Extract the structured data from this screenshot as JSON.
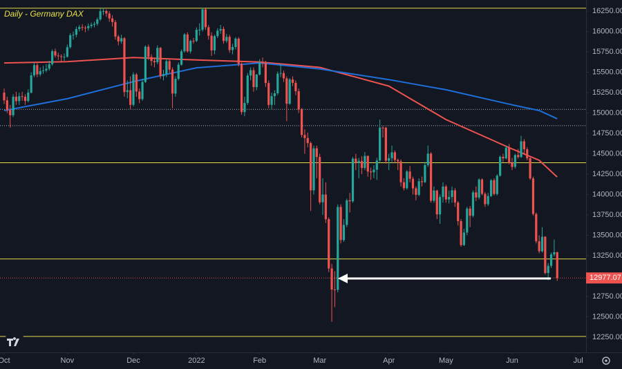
{
  "chart_data": {
    "type": "candlestick",
    "title": "Daily - Germany DAX",
    "up_color": "#26a69a",
    "down_color": "#ef5350",
    "xlim": [
      -1.38,
      193.6
    ],
    "ylim": [
      12064,
      16386
    ],
    "xticks": [
      {
        "value": 0,
        "label": "Oct"
      },
      {
        "value": 21,
        "label": "Nov"
      },
      {
        "value": 43,
        "label": "Dec"
      },
      {
        "value": 64,
        "label": "2022"
      },
      {
        "value": 85,
        "label": "Feb"
      },
      {
        "value": 105,
        "label": "Mar"
      },
      {
        "value": 128,
        "label": "Apr"
      },
      {
        "value": 147,
        "label": "May"
      },
      {
        "value": 169,
        "label": "Jun"
      },
      {
        "value": 191,
        "label": "Jul"
      }
    ],
    "yticks": [
      {
        "value": 12250,
        "label": "12250.00"
      },
      {
        "value": 12500,
        "label": "12500.00"
      },
      {
        "value": 12750,
        "label": "12750.00"
      },
      {
        "value": 13000,
        "label": "13000.00"
      },
      {
        "value": 13250,
        "label": "13250.00"
      },
      {
        "value": 13500,
        "label": "13500.00"
      },
      {
        "value": 13750,
        "label": "13750.00"
      },
      {
        "value": 14000,
        "label": "14000.00"
      },
      {
        "value": 14250,
        "label": "14250.00"
      },
      {
        "value": 14500,
        "label": "14500.00"
      },
      {
        "value": 14750,
        "label": "14750.00"
      },
      {
        "value": 15000,
        "label": "15000.00"
      },
      {
        "value": 15250,
        "label": "15250.00"
      },
      {
        "value": 15500,
        "label": "15500.00"
      },
      {
        "value": 15750,
        "label": "15750.00"
      },
      {
        "value": 16000,
        "label": "16000.00"
      },
      {
        "value": 16250,
        "label": "16250.00"
      }
    ],
    "levels": {
      "color": "#e5dd4c",
      "values": [
        16285,
        14390,
        13210,
        12260
      ]
    },
    "dotted_levels": {
      "color": "#b2b5be",
      "values": [
        15045,
        14845
      ]
    },
    "series": [
      {
        "color": "#ef5350",
        "x": [
          0,
          21,
          43,
          64,
          85,
          105,
          128,
          147,
          169,
          178,
          184
        ],
        "values": [
          15614,
          15630,
          15680,
          15650,
          15625,
          15560,
          15330,
          14920,
          14560,
          14420,
          14215
        ]
      },
      {
        "color": "#1e6fd9",
        "x": [
          0,
          21,
          43,
          64,
          85,
          105,
          128,
          147,
          169,
          178,
          184
        ],
        "values": [
          15030,
          15175,
          15385,
          15555,
          15614,
          15540,
          15410,
          15285,
          15100,
          15030,
          14930
        ]
      }
    ],
    "ohlc": [
      [
        15250,
        15300,
        15110,
        15156
      ],
      [
        15156,
        15200,
        15000,
        15037
      ],
      [
        15037,
        15100,
        14820,
        14973
      ],
      [
        14973,
        15230,
        14950,
        15200
      ],
      [
        15200,
        15260,
        15100,
        15146
      ],
      [
        15146,
        15250,
        15100,
        15206
      ],
      [
        15206,
        15260,
        15150,
        15199
      ],
      [
        15199,
        15230,
        15100,
        15147
      ],
      [
        15147,
        15290,
        15130,
        15250
      ],
      [
        15250,
        15500,
        15240,
        15462
      ],
      [
        15462,
        15620,
        15440,
        15587
      ],
      [
        15587,
        15610,
        15440,
        15474
      ],
      [
        15474,
        15560,
        15450,
        15515
      ],
      [
        15515,
        15580,
        15480,
        15522
      ],
      [
        15522,
        15600,
        15500,
        15543
      ],
      [
        15543,
        15640,
        15520,
        15599
      ],
      [
        15599,
        15780,
        15580,
        15758
      ],
      [
        15758,
        15790,
        15680,
        15705
      ],
      [
        15705,
        15740,
        15650,
        15696
      ],
      [
        15696,
        15720,
        15620,
        15688
      ],
      [
        15688,
        15730,
        15640,
        15690
      ],
      [
        15690,
        15840,
        15680,
        15807
      ],
      [
        15807,
        15980,
        15790,
        15954
      ],
      [
        15954,
        16000,
        15900,
        15960
      ],
      [
        15960,
        16060,
        15930,
        16030
      ],
      [
        16030,
        16080,
        16000,
        16054
      ],
      [
        16054,
        16090,
        16010,
        16047
      ],
      [
        16047,
        16070,
        15990,
        16040
      ],
      [
        16040,
        16100,
        16010,
        16067
      ],
      [
        16067,
        16110,
        16040,
        16083
      ],
      [
        16083,
        16120,
        16050,
        16094
      ],
      [
        16094,
        16170,
        16070,
        16148
      ],
      [
        16148,
        16280,
        16130,
        16248
      ],
      [
        16248,
        16290,
        16200,
        16251
      ],
      [
        16251,
        16270,
        16180,
        16221
      ],
      [
        16221,
        16250,
        16120,
        16160
      ],
      [
        16160,
        16200,
        16060,
        16116
      ],
      [
        16116,
        16140,
        15900,
        15938
      ],
      [
        15938,
        15960,
        15830,
        15878
      ],
      [
        15878,
        15960,
        15850,
        15917
      ],
      [
        15917,
        15930,
        15200,
        15257
      ],
      [
        15257,
        15400,
        15180,
        15280
      ],
      [
        15280,
        15450,
        15050,
        15100
      ],
      [
        15100,
        15500,
        15080,
        15473
      ],
      [
        15473,
        15490,
        15200,
        15263
      ],
      [
        15263,
        15300,
        15120,
        15170
      ],
      [
        15170,
        15420,
        15150,
        15380
      ],
      [
        15380,
        15830,
        15370,
        15813
      ],
      [
        15813,
        15840,
        15650,
        15687
      ],
      [
        15687,
        15720,
        15580,
        15639
      ],
      [
        15639,
        15680,
        15560,
        15623
      ],
      [
        15623,
        15830,
        15600,
        15799
      ],
      [
        15799,
        15810,
        15420,
        15453
      ],
      [
        15453,
        15530,
        15400,
        15476
      ],
      [
        15476,
        15660,
        15440,
        15636
      ],
      [
        15636,
        15660,
        15490,
        15532
      ],
      [
        15532,
        15560,
        15060,
        15239
      ],
      [
        15239,
        15450,
        15200,
        15419
      ],
      [
        15419,
        15620,
        15400,
        15593
      ],
      [
        15593,
        15780,
        15580,
        15757
      ],
      [
        15757,
        15980,
        15740,
        15964
      ],
      [
        15964,
        15990,
        15740,
        15756
      ],
      [
        15756,
        15900,
        15730,
        15885
      ],
      [
        15885,
        15920,
        15850,
        15884
      ],
      [
        15884,
        16050,
        15870,
        16021
      ],
      [
        16021,
        16100,
        15950,
        16021
      ],
      [
        16021,
        16290,
        16000,
        16271
      ],
      [
        16271,
        16280,
        16020,
        16052
      ],
      [
        16052,
        16080,
        15900,
        15948
      ],
      [
        15948,
        15990,
        15700,
        15768
      ],
      [
        15768,
        15960,
        15720,
        15943
      ],
      [
        15943,
        16040,
        15920,
        16011
      ],
      [
        16011,
        16080,
        15970,
        16031
      ],
      [
        16031,
        16060,
        15850,
        15883
      ],
      [
        15883,
        15970,
        15860,
        15934
      ],
      [
        15934,
        15960,
        15740,
        15772
      ],
      [
        15772,
        15850,
        15720,
        15810
      ],
      [
        15810,
        15930,
        15780,
        15912
      ],
      [
        15912,
        15930,
        15570,
        15603
      ],
      [
        15603,
        15620,
        14980,
        15011
      ],
      [
        15011,
        15200,
        14960,
        15124
      ],
      [
        15124,
        15490,
        15100,
        15460
      ],
      [
        15460,
        15560,
        15400,
        15525
      ],
      [
        15525,
        15560,
        15260,
        15318
      ],
      [
        15318,
        15480,
        15280,
        15471
      ],
      [
        15471,
        15660,
        15460,
        15619
      ],
      [
        15619,
        15680,
        15560,
        15613
      ],
      [
        15613,
        15640,
        15320,
        15368
      ],
      [
        15368,
        15400,
        15060,
        15100
      ],
      [
        15100,
        15250,
        15050,
        15207
      ],
      [
        15207,
        15280,
        15100,
        15242
      ],
      [
        15242,
        15510,
        15220,
        15482
      ],
      [
        15482,
        15600,
        15440,
        15490
      ],
      [
        15490,
        15520,
        15380,
        15425
      ],
      [
        15425,
        15450,
        14900,
        15114
      ],
      [
        15114,
        15430,
        15100,
        15412
      ],
      [
        15412,
        15450,
        15330,
        15370
      ],
      [
        15370,
        15400,
        15220,
        15268
      ],
      [
        15268,
        15300,
        15000,
        15043
      ],
      [
        15043,
        15060,
        14700,
        14731
      ],
      [
        14731,
        14800,
        14500,
        14693
      ],
      [
        14693,
        14760,
        14580,
        14631
      ],
      [
        14631,
        14650,
        13800,
        14052
      ],
      [
        14052,
        14600,
        14000,
        14567
      ],
      [
        14567,
        14600,
        14200,
        14461
      ],
      [
        14461,
        14500,
        13880,
        13905
      ],
      [
        13905,
        14200,
        13750,
        14000
      ],
      [
        14000,
        14150,
        13650,
        13698
      ],
      [
        13698,
        13720,
        13050,
        13094
      ],
      [
        13094,
        13150,
        12440,
        12835
      ],
      [
        12835,
        13060,
        12620,
        12831
      ],
      [
        12831,
        13880,
        12800,
        13848
      ],
      [
        13848,
        13880,
        13400,
        13442
      ],
      [
        13442,
        13700,
        13420,
        13628
      ],
      [
        13628,
        13950,
        13600,
        13929
      ],
      [
        13929,
        14020,
        13780,
        13917
      ],
      [
        13917,
        14460,
        13900,
        14441
      ],
      [
        14441,
        14500,
        14300,
        14388
      ],
      [
        14388,
        14450,
        14200,
        14413
      ],
      [
        14413,
        14470,
        14250,
        14326
      ],
      [
        14326,
        14520,
        14300,
        14474
      ],
      [
        14474,
        14480,
        14220,
        14283
      ],
      [
        14283,
        14330,
        14180,
        14273
      ],
      [
        14273,
        14360,
        14200,
        14305
      ],
      [
        14305,
        14450,
        14180,
        14418
      ],
      [
        14418,
        14920,
        14400,
        14821
      ],
      [
        14821,
        14840,
        14700,
        14820
      ],
      [
        14820,
        14830,
        14380,
        14415
      ],
      [
        14415,
        14500,
        14300,
        14446
      ],
      [
        14446,
        14600,
        14400,
        14518
      ],
      [
        14518,
        14540,
        14390,
        14424
      ],
      [
        14424,
        14440,
        14300,
        14407
      ],
      [
        14407,
        14430,
        14100,
        14151
      ],
      [
        14151,
        14200,
        14050,
        14078
      ],
      [
        14078,
        14300,
        14060,
        14283
      ],
      [
        14283,
        14350,
        14150,
        14194
      ],
      [
        14194,
        14220,
        14000,
        14076
      ],
      [
        14076,
        14100,
        13930,
        13997
      ],
      [
        13997,
        14200,
        13980,
        14163
      ],
      [
        14163,
        14220,
        14100,
        14153
      ],
      [
        14153,
        14400,
        14140,
        14362
      ],
      [
        14362,
        14600,
        14340,
        14502
      ],
      [
        14502,
        14520,
        13900,
        13924
      ],
      [
        13924,
        14100,
        13900,
        14049
      ],
      [
        14049,
        14060,
        13700,
        13757
      ],
      [
        13757,
        14000,
        13640,
        13970
      ],
      [
        13970,
        14150,
        13900,
        14098
      ],
      [
        14098,
        14120,
        13900,
        13940
      ],
      [
        13940,
        14050,
        13890,
        13970
      ],
      [
        13970,
        14100,
        13900,
        14052
      ],
      [
        14052,
        14080,
        13850,
        13902
      ],
      [
        13902,
        13920,
        13620,
        13674
      ],
      [
        13674,
        13700,
        13360,
        13380
      ],
      [
        13380,
        13580,
        13370,
        13534
      ],
      [
        13534,
        13850,
        13500,
        13828
      ],
      [
        13828,
        13860,
        13600,
        13740
      ],
      [
        13740,
        14050,
        13720,
        14027
      ],
      [
        14027,
        14100,
        13920,
        13964
      ],
      [
        13964,
        14200,
        13940,
        14185
      ],
      [
        14185,
        14200,
        13990,
        14008
      ],
      [
        14008,
        14030,
        13850,
        13882
      ],
      [
        13882,
        14020,
        13860,
        13982
      ],
      [
        13982,
        14190,
        13970,
        14176
      ],
      [
        14176,
        14200,
        13990,
        14007
      ],
      [
        14007,
        14250,
        13990,
        14231
      ],
      [
        14231,
        14480,
        14220,
        14462
      ],
      [
        14462,
        14500,
        14400,
        14444
      ],
      [
        14444,
        14600,
        14430,
        14575
      ],
      [
        14575,
        14620,
        14370,
        14388
      ],
      [
        14388,
        14450,
        14300,
        14340
      ],
      [
        14340,
        14500,
        14320,
        14485
      ],
      [
        14485,
        14560,
        14440,
        14460
      ],
      [
        14460,
        14720,
        14450,
        14653
      ],
      [
        14653,
        14680,
        14500,
        14556
      ],
      [
        14556,
        14580,
        14420,
        14445
      ],
      [
        14445,
        14460,
        14180,
        14198
      ],
      [
        14198,
        14220,
        13740,
        13762
      ],
      [
        13762,
        13780,
        13400,
        13427
      ],
      [
        13427,
        13500,
        13280,
        13304
      ],
      [
        13304,
        13600,
        13290,
        13483
      ],
      [
        13483,
        13490,
        13020,
        13038
      ],
      [
        13038,
        13160,
        12950,
        13126
      ],
      [
        13126,
        13290,
        13100,
        13265
      ],
      [
        13265,
        13450,
        13240,
        13292
      ],
      [
        13292,
        13300,
        12940,
        12977.07
      ]
    ]
  }
}
